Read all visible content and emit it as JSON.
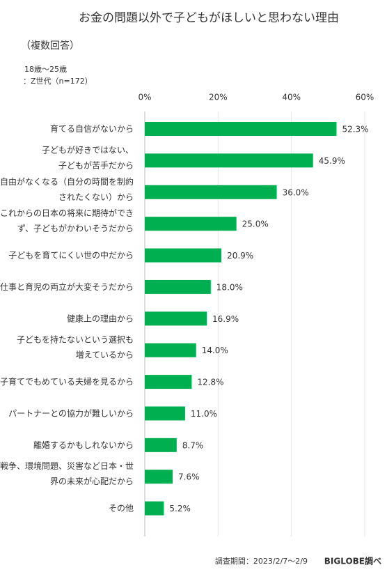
{
  "chart_data": {
    "type": "bar",
    "orientation": "horizontal",
    "title": "お金の問題以外で子どもがほしいと思わない理由",
    "subtitle": "（複数回答）",
    "notes": [
      "18歳～25歳",
      "：Z世代（n=172）"
    ],
    "categories": [
      "育てる自信がないから",
      "子どもが好きではない、\n子どもが苦手だから",
      "自由がなくなる（自分の時間を制約\nされたくない）から",
      "これからの日本の将来に期待ができ\nず、子どもがかわいそうだから",
      "子どもを育てにくい世の中だから",
      "仕事と育児の両立が大変そうだから",
      "健康上の理由から",
      "子どもを持たないという選択も\n増えているから",
      "子育てでもめている夫婦を見るから",
      "パートナーとの協力が難しいから",
      "離婚するかもしれないから",
      "戦争、環境問題、災害など日本・世\n界の未来が心配だから",
      "その他"
    ],
    "values": [
      52.3,
      45.9,
      36.0,
      25.0,
      20.9,
      18.0,
      16.9,
      14.0,
      12.8,
      11.0,
      8.7,
      7.6,
      5.2
    ],
    "value_labels": [
      "52.3%",
      "45.9%",
      "36.0%",
      "25.0%",
      "20.9%",
      "18.0%",
      "16.9%",
      "14.0%",
      "12.8%",
      "11.0%",
      "8.7%",
      "7.6%",
      "5.2%"
    ],
    "color": "#00b050",
    "xlim": [
      0,
      60
    ],
    "xticks": [
      {
        "value": 0,
        "label": "0%"
      },
      {
        "value": 20,
        "label": "20%"
      },
      {
        "value": 40,
        "label": "40%"
      },
      {
        "value": 60,
        "label": "60%"
      }
    ],
    "grid": true,
    "footer": "調査期間：2023/2/7～2/9",
    "source": "BIGLOBE調べ"
  }
}
